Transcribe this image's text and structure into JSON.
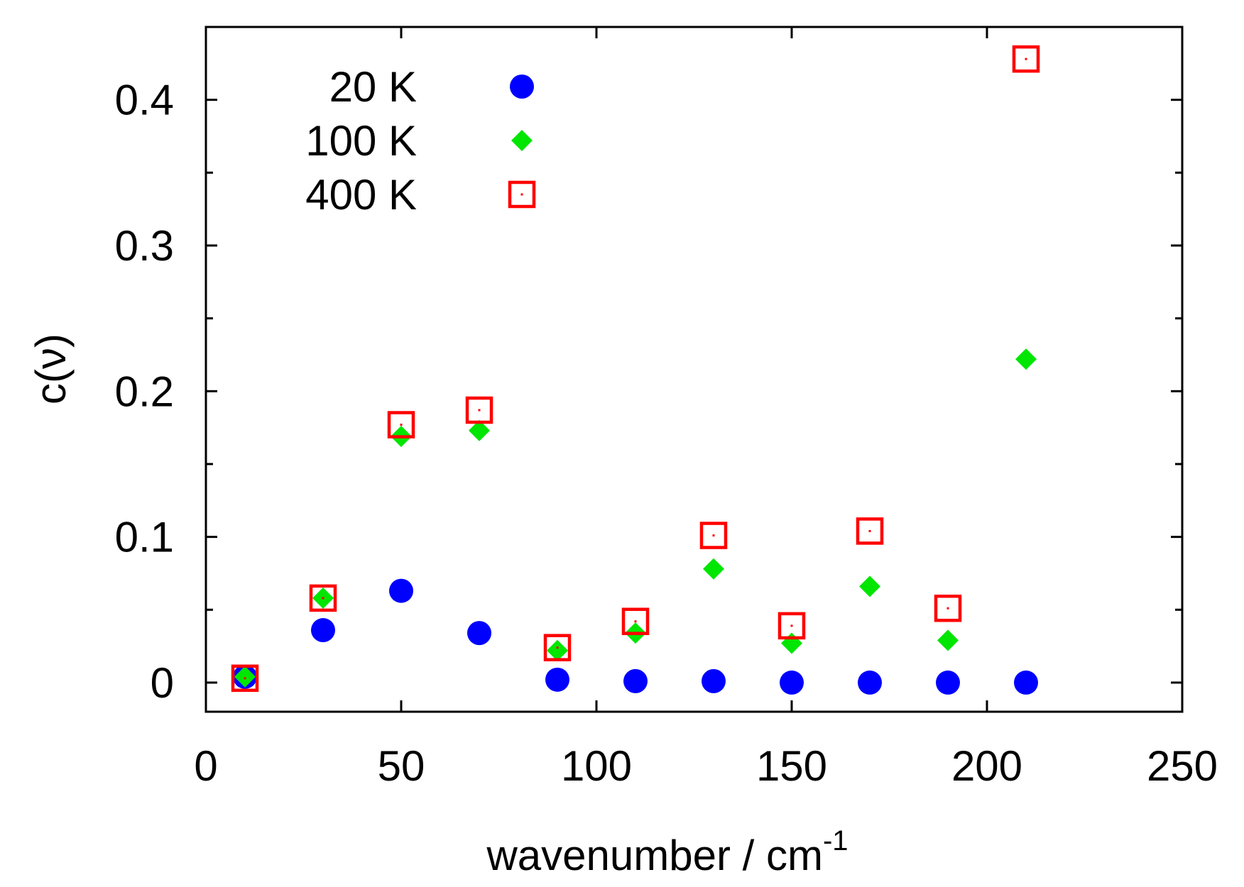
{
  "chart_data": {
    "type": "scatter",
    "title": "",
    "xlabel": "wavenumber / cm",
    "xlabel_superscript": "-1",
    "ylabel": "c(ν)",
    "xlim": [
      0,
      250
    ],
    "ylim": [
      -0.02,
      0.45
    ],
    "xticks": [
      0,
      50,
      100,
      150,
      200,
      250
    ],
    "yticks": [
      0,
      0.1,
      0.2,
      0.3,
      0.4
    ],
    "yminor_ticks": [
      0.05,
      0.15,
      0.25,
      0.35
    ],
    "x_tick_labels": [
      "0",
      "50",
      "100",
      "150",
      "200",
      "250"
    ],
    "y_tick_labels": [
      "0",
      "0.1",
      "0.2",
      "0.3",
      "0.4"
    ],
    "grid": false,
    "legend_position": "top-left",
    "series": [
      {
        "name": "20 K",
        "marker": "circle",
        "color": "#0000ff",
        "x": [
          10,
          30,
          50,
          70,
          90,
          110,
          130,
          150,
          170,
          190,
          210
        ],
        "y": [
          0.004,
          0.036,
          0.063,
          0.034,
          0.002,
          0.001,
          0.001,
          0.0,
          0.0,
          0.0,
          0.0
        ]
      },
      {
        "name": "100 K",
        "marker": "diamond",
        "color": "#00e600",
        "x": [
          10,
          30,
          50,
          70,
          90,
          110,
          130,
          150,
          170,
          190,
          210
        ],
        "y": [
          0.004,
          0.058,
          0.169,
          0.173,
          0.022,
          0.034,
          0.078,
          0.027,
          0.066,
          0.029,
          0.222
        ]
      },
      {
        "name": "400 K",
        "marker": "square-dot",
        "color": "#ff0000",
        "x": [
          10,
          30,
          50,
          70,
          90,
          110,
          130,
          150,
          170,
          190,
          210
        ],
        "y": [
          0.003,
          0.058,
          0.177,
          0.187,
          0.024,
          0.042,
          0.101,
          0.039,
          0.104,
          0.051,
          0.428
        ]
      }
    ]
  }
}
